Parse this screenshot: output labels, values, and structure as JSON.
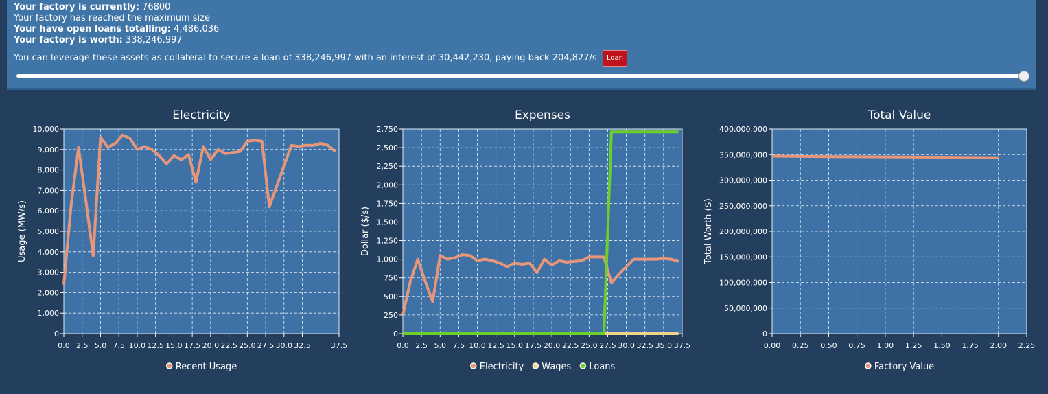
{
  "header": {
    "lines": [
      {
        "label": "Your factory is currently:",
        "value": "76800"
      },
      {
        "label": "",
        "value": "Your factory has reached the maximum size"
      },
      {
        "label": "Your have open loans totalling:",
        "value": "4,486,036"
      },
      {
        "label": "Your factory is worth:",
        "value": "338,246,997"
      }
    ],
    "loan_text": "You can leverage these assets as collateral to secure a loan of 338,246,997 with an interest of 30,442,230, paying back 204,827/s",
    "loan_button": "Loan"
  },
  "chart_data": [
    {
      "type": "line",
      "title": "Electricity",
      "y_label": "Usage (MW/s)",
      "grid": true,
      "legend": "bottom",
      "xlim": [
        0,
        37.5
      ],
      "ylim": [
        0,
        10000
      ],
      "xticks": [
        {
          "value": 0,
          "label": "0.0"
        },
        2.5,
        {
          "value": 5,
          "label": "5.0"
        },
        7.5,
        {
          "value": 10,
          "label": "10.0"
        },
        12.5,
        {
          "value": 15,
          "label": "15.0"
        },
        17.5,
        {
          "value": 20,
          "label": "20.0"
        },
        22.5,
        {
          "value": 25,
          "label": "25.0"
        },
        27.5,
        {
          "value": 30,
          "label": "30.0"
        },
        32.5,
        37.5
      ],
      "yticks": [
        0,
        {
          "value": 1000,
          "label": "1,000"
        },
        {
          "value": 2000,
          "label": "2,000"
        },
        {
          "value": 3000,
          "label": "3,000"
        },
        {
          "value": 4000,
          "label": "4,000"
        },
        {
          "value": 5000,
          "label": "5,000"
        },
        {
          "value": 6000,
          "label": "6,000"
        },
        {
          "value": 7000,
          "label": "7,000"
        },
        {
          "value": 8000,
          "label": "8,000"
        },
        {
          "value": 9000,
          "label": "9,000"
        },
        {
          "value": 10000,
          "label": "10,000"
        }
      ],
      "x": [
        0,
        1,
        2,
        3,
        4,
        5,
        6,
        7,
        8,
        9,
        10,
        11,
        12,
        13,
        14,
        15,
        16,
        17,
        18,
        19,
        20,
        21,
        22,
        23,
        24,
        25,
        26,
        27,
        28,
        29,
        30,
        31,
        32,
        33,
        34,
        35,
        36,
        37
      ],
      "series": [
        {
          "name": "Recent Usage",
          "color": "#e8967a",
          "values": [
            2400,
            6300,
            9100,
            6500,
            3800,
            9600,
            9100,
            9300,
            9700,
            9550,
            9000,
            9150,
            9000,
            8700,
            8300,
            8700,
            8500,
            8750,
            7400,
            9150,
            8500,
            9000,
            8800,
            8850,
            8900,
            9400,
            9450,
            9400,
            6200,
            7200,
            8200,
            9200,
            9150,
            9200,
            9200,
            9300,
            9200,
            8900
          ]
        }
      ]
    },
    {
      "type": "line",
      "title": "Expenses",
      "y_label": "Dollar ($/s)",
      "grid": true,
      "legend": "bottom",
      "xlim": [
        0,
        37.5
      ],
      "ylim": [
        0,
        2750
      ],
      "xticks": [
        {
          "value": 0,
          "label": "0.0"
        },
        2.5,
        {
          "value": 5,
          "label": "5.0"
        },
        7.5,
        {
          "value": 10,
          "label": "10.0"
        },
        12.5,
        {
          "value": 15,
          "label": "15.0"
        },
        17.5,
        {
          "value": 20,
          "label": "20.0"
        },
        22.5,
        {
          "value": 25,
          "label": "25.0"
        },
        27.5,
        {
          "value": 30,
          "label": "30.0"
        },
        32.5,
        {
          "value": 35,
          "label": "35.0"
        },
        37.5
      ],
      "yticks": [
        0,
        250,
        500,
        750,
        {
          "value": 1000,
          "label": "1,000"
        },
        {
          "value": 1250,
          "label": "1,250"
        },
        {
          "value": 1500,
          "label": "1,500"
        },
        {
          "value": 1750,
          "label": "1,750"
        },
        {
          "value": 2000,
          "label": "2,000"
        },
        {
          "value": 2250,
          "label": "2,250"
        },
        {
          "value": 2500,
          "label": "2,500"
        },
        {
          "value": 2750,
          "label": "2,750"
        }
      ],
      "x": [
        0,
        1,
        2,
        3,
        4,
        5,
        6,
        7,
        8,
        9,
        10,
        11,
        12,
        13,
        14,
        15,
        16,
        17,
        18,
        19,
        20,
        21,
        22,
        23,
        24,
        25,
        26,
        27,
        28,
        29,
        30,
        31,
        32,
        33,
        34,
        35,
        36,
        37
      ],
      "series": [
        {
          "name": "Electricity",
          "color": "#e8967a",
          "values": [
            250,
            700,
            1000,
            700,
            430,
            1050,
            1000,
            1020,
            1060,
            1050,
            980,
            1000,
            980,
            950,
            900,
            950,
            930,
            950,
            820,
            1000,
            920,
            980,
            960,
            970,
            980,
            1030,
            1030,
            1030,
            680,
            800,
            900,
            1000,
            1000,
            1000,
            1000,
            1010,
            1000,
            970
          ]
        },
        {
          "name": "Wages",
          "color": "#f2d38a",
          "values": [
            0,
            0,
            0,
            0,
            0,
            0,
            0,
            0,
            0,
            0,
            0,
            0,
            0,
            0,
            0,
            0,
            0,
            0,
            0,
            0,
            0,
            0,
            0,
            0,
            0,
            0,
            0,
            0,
            0,
            0,
            0,
            0,
            0,
            0,
            0,
            0,
            0,
            0
          ]
        },
        {
          "name": "Loans",
          "color": "#6fcf2a",
          "values": [
            0,
            0,
            0,
            0,
            0,
            0,
            0,
            0,
            0,
            0,
            0,
            0,
            0,
            0,
            0,
            0,
            0,
            0,
            0,
            0,
            0,
            0,
            0,
            0,
            0,
            0,
            0,
            0,
            2710,
            2710,
            2710,
            2710,
            2710,
            2710,
            2710,
            2710,
            2710,
            2710
          ]
        }
      ]
    },
    {
      "type": "line",
      "title": "Total Value",
      "y_label": "Total Worth ($)",
      "grid": true,
      "legend": "bottom",
      "xlim": [
        0,
        2.25
      ],
      "ylim": [
        0,
        400000000
      ],
      "xticks": [
        {
          "value": 0,
          "label": "0.00"
        },
        0.25,
        {
          "value": 0.5,
          "label": "0.50"
        },
        0.75,
        {
          "value": 1,
          "label": "1.00"
        },
        1.25,
        {
          "value": 1.5,
          "label": "1.50"
        },
        1.75,
        {
          "value": 2,
          "label": "2.00"
        },
        2.25
      ],
      "yticks": [
        0,
        {
          "value": 50000000,
          "label": "50,000,000"
        },
        {
          "value": 100000000,
          "label": "100,000,000"
        },
        {
          "value": 150000000,
          "label": "150,000,000"
        },
        {
          "value": 200000000,
          "label": "200,000,000"
        },
        {
          "value": 250000000,
          "label": "250,000,000"
        },
        {
          "value": 300000000,
          "label": "300,000,000"
        },
        {
          "value": 350000000,
          "label": "350,000,000"
        },
        {
          "value": 400000000,
          "label": "400,000,000"
        }
      ],
      "x": [
        0,
        0.5,
        1,
        1.5,
        2
      ],
      "series": [
        {
          "name": "Factory Value",
          "color": "#e8967a",
          "values": [
            347000000,
            346000000,
            345500000,
            345000000,
            344000000
          ]
        }
      ]
    }
  ]
}
